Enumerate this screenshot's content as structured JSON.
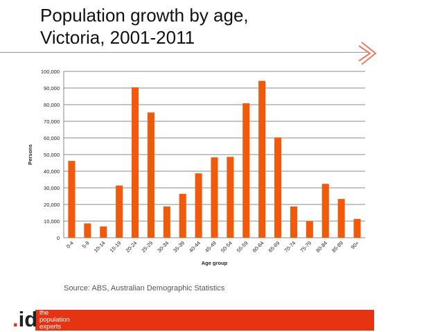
{
  "slide": {
    "title_line1": "Population growth by age,",
    "title_line2": "Victoria, 2001-2011",
    "source": "Source: ABS, Australian Demographic Statistics"
  },
  "logo": {
    "dot": ".",
    "id": "id",
    "tag1": "the",
    "tag2": "population",
    "tag3": "experts"
  },
  "colors": {
    "bar": "#f05a0a",
    "footer": "#e63312"
  },
  "chart_data": {
    "type": "bar",
    "title": "",
    "xlabel": "Age group",
    "ylabel": "Persons",
    "ylim": [
      0,
      100000
    ],
    "yticks": [
      0,
      10000,
      20000,
      30000,
      40000,
      50000,
      60000,
      70000,
      80000,
      90000,
      100000
    ],
    "ytick_labels": [
      "0",
      "10,000",
      "20,000",
      "30,000",
      "40,000",
      "50,000",
      "60,000",
      "70,000",
      "80,000",
      "90,000",
      "100,000"
    ],
    "grid": true,
    "categories": [
      "0-4",
      "5-9",
      "10-14",
      "15-19",
      "20-24",
      "25-29",
      "30-34",
      "35-39",
      "40-44",
      "45-49",
      "50-54",
      "55-59",
      "60-64",
      "65-69",
      "70-74",
      "75-79",
      "80-84",
      "85-89",
      "90+"
    ],
    "values": [
      46200,
      8600,
      6800,
      31400,
      90400,
      75300,
      18800,
      26400,
      38700,
      48300,
      48600,
      80800,
      94300,
      60300,
      18800,
      9900,
      32400,
      23300,
      11300
    ]
  }
}
